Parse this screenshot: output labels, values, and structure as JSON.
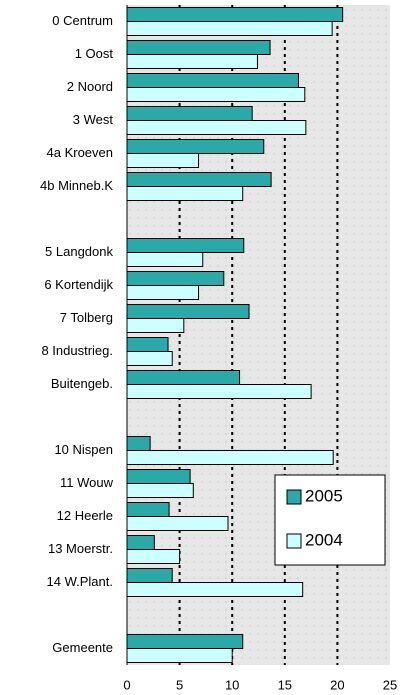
{
  "chart_data": {
    "type": "barh",
    "categories": [
      "0 Centrum",
      "1 Oost",
      "2 Noord",
      "3 West",
      "4a Kroeven",
      "4b Minneb.K",
      null,
      "5 Langdonk",
      "6 Kortendijk",
      "7 Tolberg",
      "8 Industrieg.",
      "Buitengeb.",
      null,
      "10 Nispen",
      "11 Wouw",
      "12 Heerle",
      "13 Moerstr.",
      "14 W.Plant.",
      null,
      "Gemeente"
    ],
    "series": [
      {
        "name": "2005",
        "color": "#2ba8a8",
        "values": [
          20.5,
          13.6,
          16.3,
          11.9,
          13.0,
          13.7,
          null,
          11.1,
          9.2,
          11.6,
          3.9,
          10.7,
          null,
          2.2,
          6.0,
          4.0,
          2.6,
          4.3,
          null,
          11.0
        ]
      },
      {
        "name": "2004",
        "color": "#ccffff",
        "values": [
          19.5,
          12.4,
          16.9,
          17.0,
          6.8,
          11.0,
          null,
          7.2,
          6.8,
          5.4,
          4.3,
          17.5,
          null,
          19.6,
          6.3,
          9.6,
          5.0,
          16.7,
          null,
          10.0
        ]
      }
    ],
    "xlim": [
      0,
      25
    ],
    "xticks": [
      0,
      5,
      10,
      15,
      20,
      25
    ],
    "grid": true,
    "legend": "lower right"
  }
}
